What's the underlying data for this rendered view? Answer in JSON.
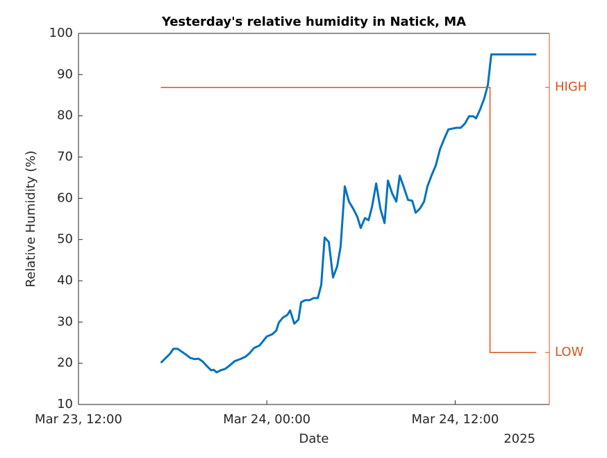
{
  "chart_data": {
    "type": "line",
    "title": "Yesterday's relative humidity in Natick, MA",
    "x_label": "Date",
    "x_secondary_label": "2025",
    "y_label": "Relative Humidity (%)",
    "xlim": [
      "2025-03-23T12:00",
      "2025-03-24T18:00"
    ],
    "xticks": [
      {
        "value": "2025-03-23T12:00",
        "label": "Mar 23, 12:00"
      },
      {
        "value": "2025-03-24T00:00",
        "label": "Mar 24, 00:00"
      },
      {
        "value": "2025-03-24T12:00",
        "label": "Mar 24, 12:00"
      }
    ],
    "ylim": [
      10,
      100
    ],
    "yticks": [
      10,
      20,
      30,
      40,
      50,
      60,
      70,
      80,
      90,
      100
    ],
    "y2lim": [
      10,
      100
    ],
    "y2ticks": [
      {
        "value": 86.9,
        "label": "HIGH"
      },
      {
        "value": 22.6,
        "label": "LOW"
      }
    ],
    "y2_color": "#d95319",
    "series": [
      {
        "color": "#0072bd",
        "x": [
          "2025-03-23T17:15",
          "2025-03-23T17:37",
          "2025-03-23T17:50",
          "2025-03-23T18:03",
          "2025-03-23T18:19",
          "2025-03-23T18:35",
          "2025-03-23T18:51",
          "2025-03-23T19:07",
          "2025-03-23T19:23",
          "2025-03-23T19:39",
          "2025-03-23T19:55",
          "2025-03-23T20:11",
          "2025-03-23T20:27",
          "2025-03-23T20:37",
          "2025-03-23T20:48",
          "2025-03-23T21:04",
          "2025-03-23T21:20",
          "2025-03-23T21:35",
          "2025-03-23T21:57",
          "2025-03-23T22:18",
          "2025-03-23T22:39",
          "2025-03-23T22:55",
          "2025-03-23T23:11",
          "2025-03-23T23:32",
          "2025-03-24T00:00",
          "2025-03-24T00:20",
          "2025-03-24T00:36",
          "2025-03-24T00:46",
          "2025-03-24T01:02",
          "2025-03-24T01:18",
          "2025-03-24T01:29",
          "2025-03-24T01:45",
          "2025-03-24T02:01",
          "2025-03-24T02:11",
          "2025-03-24T02:27",
          "2025-03-24T02:43",
          "2025-03-24T02:59",
          "2025-03-24T03:15",
          "2025-03-24T03:28",
          "2025-03-24T03:41",
          "2025-03-24T03:57",
          "2025-03-24T04:13",
          "2025-03-24T04:29",
          "2025-03-24T04:42",
          "2025-03-24T04:58",
          "2025-03-24T05:14",
          "2025-03-24T05:30",
          "2025-03-24T05:46",
          "2025-03-24T05:59",
          "2025-03-24T06:15",
          "2025-03-24T06:29",
          "2025-03-24T06:42",
          "2025-03-24T06:58",
          "2025-03-24T07:14",
          "2025-03-24T07:30",
          "2025-03-24T07:43",
          "2025-03-24T07:59",
          "2025-03-24T08:15",
          "2025-03-24T08:28",
          "2025-03-24T08:44",
          "2025-03-24T09:00",
          "2025-03-24T09:16",
          "2025-03-24T09:29",
          "2025-03-24T09:45",
          "2025-03-24T10:01",
          "2025-03-24T10:14",
          "2025-03-24T10:30",
          "2025-03-24T10:46",
          "2025-03-24T11:02",
          "2025-03-24T11:18",
          "2025-03-24T11:34",
          "2025-03-24T11:49",
          "2025-03-24T12:05",
          "2025-03-24T12:21",
          "2025-03-24T12:37",
          "2025-03-24T12:53",
          "2025-03-24T13:09",
          "2025-03-24T13:20",
          "2025-03-24T13:35",
          "2025-03-24T13:51",
          "2025-03-24T14:05",
          "2025-03-24T14:18",
          "2025-03-24T14:50",
          "2025-03-24T17:10"
        ],
        "values": [
          20.1,
          21.5,
          22.3,
          23.5,
          23.5,
          22.8,
          22.1,
          21.3,
          21.0,
          21.1,
          20.4,
          19.3,
          18.3,
          18.4,
          17.8,
          18.3,
          18.6,
          19.3,
          20.5,
          21.0,
          21.6,
          22.5,
          23.7,
          24.3,
          26.5,
          27.0,
          27.9,
          29.9,
          31.1,
          31.7,
          32.8,
          29.6,
          30.6,
          34.8,
          35.3,
          35.3,
          35.8,
          35.8,
          39.0,
          50.5,
          49.4,
          40.8,
          43.5,
          48.3,
          62.9,
          59.2,
          57.5,
          55.5,
          52.8,
          55.2,
          54.7,
          57.9,
          63.6,
          57.5,
          54.0,
          64.3,
          61.2,
          59.2,
          65.5,
          62.6,
          59.6,
          59.4,
          56.5,
          57.5,
          59.2,
          62.9,
          65.6,
          68.0,
          71.9,
          74.4,
          76.7,
          76.9,
          77.1,
          77.1,
          78.1,
          79.9,
          79.9,
          79.4,
          81.5,
          84.2,
          87.5,
          94.9,
          94.9,
          94.9
        ]
      },
      {
        "color": "#d95319",
        "axis": "y2",
        "x": [
          "2025-03-23T17:15",
          "2025-03-24T14:13",
          "2025-03-24T14:13",
          "2025-03-24T17:10"
        ],
        "values": [
          86.9,
          86.9,
          22.6,
          22.6
        ]
      }
    ]
  }
}
